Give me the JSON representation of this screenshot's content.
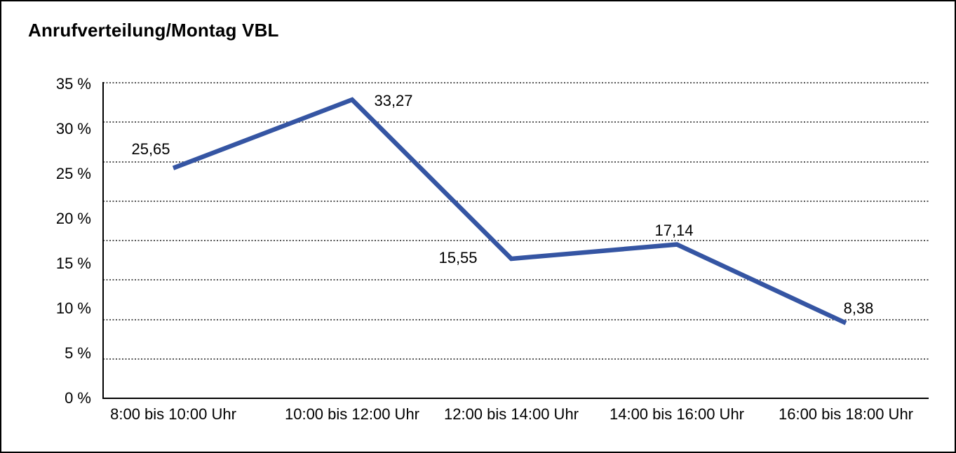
{
  "title": "Anrufverteilung/Montag VBL",
  "chart_data": {
    "type": "line",
    "title": "Anrufverteilung/Montag VBL",
    "categories": [
      "8:00 bis 10:00 Uhr",
      "10:00 bis 12:00 Uhr",
      "12:00 bis 14:00 Uhr",
      "14:00 bis 16:00 Uhr",
      "16:00 bis 18:00 Uhr"
    ],
    "values": [
      25.65,
      33.27,
      15.55,
      17.14,
      8.38
    ],
    "value_labels": [
      "25,65",
      "33,27",
      "15,55",
      "17,14",
      "8,38"
    ],
    "unit": "%",
    "xlabel": "",
    "ylabel": "",
    "ylim": [
      0,
      35
    ],
    "y_ticks": [
      {
        "value": 35,
        "label": "35 %"
      },
      {
        "value": 30,
        "label": "30 %"
      },
      {
        "value": 25,
        "label": "25 %"
      },
      {
        "value": 20,
        "label": "20 %"
      },
      {
        "value": 15,
        "label": "15 %"
      },
      {
        "value": 10,
        "label": "10 %"
      },
      {
        "value": 5,
        "label": "5 %"
      },
      {
        "value": 0,
        "label": "0 %"
      }
    ],
    "grid": "horizontal-dotted",
    "legend": "none",
    "line_color": "#3555A3"
  }
}
